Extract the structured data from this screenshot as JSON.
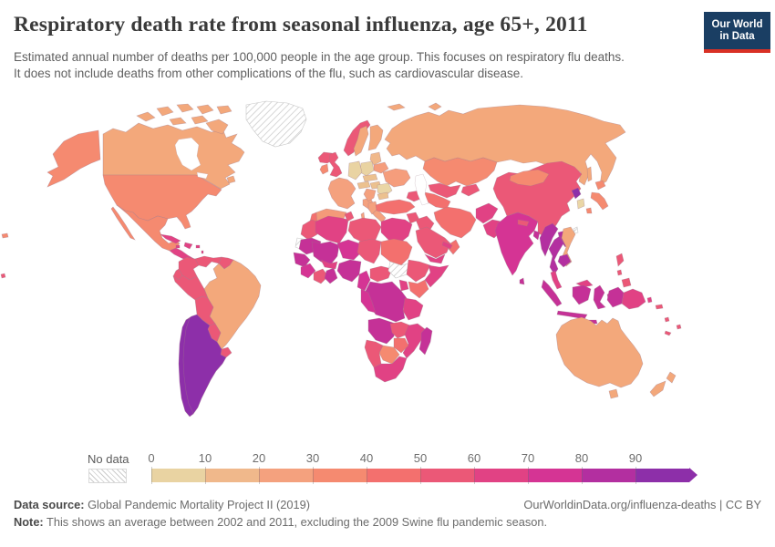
{
  "header": {
    "title": "Respiratory death rate from seasonal influenza, age 65+, 2011",
    "subtitle": "Estimated annual number of deaths per 100,000 people in the age group. This focuses on respiratory flu deaths.\nIt does not include deaths from other complications of the flu, such as cardiovascular disease.",
    "logo": {
      "line1": "Our World",
      "line2": "in Data",
      "bg_color": "#1a3e63",
      "accent_color": "#d93025"
    }
  },
  "legend": {
    "no_data_label": "No data",
    "tick_labels": [
      "0",
      "10",
      "20",
      "30",
      "40",
      "50",
      "60",
      "70",
      "80",
      "90"
    ],
    "bins": [
      {
        "range": "0-10",
        "color": "#e9d3a2"
      },
      {
        "range": "10-20",
        "color": "#f0b88b"
      },
      {
        "range": "20-30",
        "color": "#f4a17e"
      },
      {
        "range": "30-40",
        "color": "#f58a70"
      },
      {
        "range": "40-50",
        "color": "#f3706e"
      },
      {
        "range": "50-60",
        "color": "#eb5877"
      },
      {
        "range": "60-70",
        "color": "#e14284"
      },
      {
        "range": "70-80",
        "color": "#d53494"
      },
      {
        "range": "80-90",
        "color": "#b32fa0"
      },
      {
        "range": "90+",
        "color": "#8d2fa9"
      }
    ]
  },
  "footer": {
    "data_source_label": "Data source:",
    "data_source_text": " Global Pandemic Mortality Project II (2019)",
    "attribution": "OurWorldinData.org/influenza-deaths | CC BY",
    "note_label": "Note:",
    "note_text": " This shows an average between 2002 and 2011, excluding the 2009 Swine flu pandemic season."
  },
  "chart_data": {
    "type": "choropleth_map",
    "title": "Respiratory death rate from seasonal influenza, age 65+, 2011",
    "unit": "estimated annual deaths per 100,000 people aged 65+",
    "year": "2011",
    "value_range": [
      0,
      100
    ],
    "legend_position": "bottom",
    "regions": {
      "greenland": {
        "name": "Greenland",
        "value_bin": "No data",
        "color": "hatch"
      },
      "western_sahara": {
        "name": "Western Sahara",
        "value_bin": "No data",
        "color": "hatch"
      },
      "south_sudan": {
        "name": "South Sudan",
        "value_bin": "No data",
        "color": "hatch"
      },
      "taiwan": {
        "name": "Taiwan",
        "value_bin": "No data",
        "color": "hatch"
      },
      "canada": {
        "name": "Canada",
        "value_bin": "20-30",
        "color": "#f3a87b"
      },
      "united_states": {
        "name": "United States",
        "value_bin": "30-40",
        "color": "#f58a70"
      },
      "mexico": {
        "name": "Mexico",
        "value_bin": "30-40",
        "color": "#f58a70"
      },
      "central_america": {
        "name": "Central America",
        "value_bin": "60-70",
        "color": "#e14284"
      },
      "cuba": {
        "name": "Cuba",
        "value_bin": "60-70",
        "color": "#e14284"
      },
      "hispaniola": {
        "name": "Haiti / Dominican Rep.",
        "value_bin": "60-70",
        "color": "#e14284"
      },
      "caribbean": {
        "name": "Caribbean islands",
        "value_bin": "60-70",
        "color": "#e14284"
      },
      "colombia": {
        "name": "Colombia",
        "value_bin": "50-60",
        "color": "#eb5877"
      },
      "venezuela": {
        "name": "Venezuela",
        "value_bin": "50-60",
        "color": "#eb5877"
      },
      "guyana_suriname": {
        "name": "Guyana / Suriname",
        "value_bin": "50-60",
        "color": "#eb5877"
      },
      "ecuador": {
        "name": "Ecuador",
        "value_bin": "50-60",
        "color": "#eb5877"
      },
      "peru": {
        "name": "Peru",
        "value_bin": "50-60",
        "color": "#eb5877"
      },
      "bolivia": {
        "name": "Bolivia",
        "value_bin": "50-60",
        "color": "#eb5877"
      },
      "paraguay": {
        "name": "Paraguay",
        "value_bin": "50-60",
        "color": "#eb5877"
      },
      "brazil": {
        "name": "Brazil",
        "value_bin": "20-30",
        "color": "#f3a87b"
      },
      "uruguay": {
        "name": "Uruguay",
        "value_bin": "50-60",
        "color": "#eb5877"
      },
      "argentina": {
        "name": "Argentina",
        "value_bin": "90+",
        "color": "#8d2fa9"
      },
      "chile": {
        "name": "Chile",
        "value_bin": "90+",
        "color": "#8d2fa9"
      },
      "iceland": {
        "name": "Iceland",
        "value_bin": "50-60",
        "color": "#eb5877"
      },
      "united_kingdom": {
        "name": "United Kingdom",
        "value_bin": "50-60",
        "color": "#eb5877"
      },
      "ireland": {
        "name": "Ireland",
        "value_bin": "30-40",
        "color": "#f58a70"
      },
      "norway": {
        "name": "Norway",
        "value_bin": "50-60",
        "color": "#eb5877"
      },
      "sweden": {
        "name": "Sweden",
        "value_bin": "20-30",
        "color": "#f3a87b"
      },
      "finland": {
        "name": "Finland",
        "value_bin": "20-30",
        "color": "#f3a87b"
      },
      "denmark": {
        "name": "Denmark",
        "value_bin": "30-40",
        "color": "#f58a70"
      },
      "baltic_states": {
        "name": "Baltic states",
        "value_bin": "10-20",
        "color": "#f0b88b"
      },
      "belarus": {
        "name": "Belarus",
        "value_bin": "30-40",
        "color": "#f59d7c"
      },
      "poland": {
        "name": "Poland",
        "value_bin": "0-10",
        "color": "#e9d3a2"
      },
      "germany": {
        "name": "Germany",
        "value_bin": "0-10",
        "color": "#e9d3a2"
      },
      "france": {
        "name": "France",
        "value_bin": "20-30",
        "color": "#f4a17e"
      },
      "spain": {
        "name": "Spain",
        "value_bin": "20-30",
        "color": "#f49a79"
      },
      "portugal": {
        "name": "Portugal",
        "value_bin": "40-50",
        "color": "#f3706e"
      },
      "italy": {
        "name": "Italy",
        "value_bin": "20-30",
        "color": "#f4a17e"
      },
      "central_europe": {
        "name": "Czechia / Slovakia / Austria",
        "value_bin": "10-20",
        "color": "#ecc18f"
      },
      "hungary": {
        "name": "Hungary",
        "value_bin": "10-20",
        "color": "#ecc18f"
      },
      "romania": {
        "name": "Romania",
        "value_bin": "0-10",
        "color": "#ead6a6"
      },
      "balkans": {
        "name": "Balkans",
        "value_bin": "20-30",
        "color": "#f4a17e"
      },
      "greece": {
        "name": "Greece",
        "value_bin": "20-30",
        "color": "#f4a17e"
      },
      "bulgaria": {
        "name": "Bulgaria",
        "value_bin": "10-20",
        "color": "#ecc18f"
      },
      "ukraine": {
        "name": "Ukraine",
        "value_bin": "30-40",
        "color": "#f59d7c"
      },
      "russia": {
        "name": "Russia",
        "value_bin": "20-30",
        "color": "#f3a87b"
      },
      "svalbard": {
        "name": "Svalbard",
        "value_bin": "20-30",
        "color": "#f3a87b"
      },
      "kazakhstan": {
        "name": "Kazakhstan",
        "value_bin": "30-40",
        "color": "#f58a70"
      },
      "uzbekistan": {
        "name": "Uzbekistan",
        "value_bin": "50-60",
        "color": "#eb5877"
      },
      "turkmenistan": {
        "name": "Turkmenistan",
        "value_bin": "40-50",
        "color": "#f3706e"
      },
      "kyrgyzstan_tajikistan": {
        "name": "Kyrgyzstan / Tajikistan",
        "value_bin": "50-60",
        "color": "#eb5877"
      },
      "caucasus": {
        "name": "Caucasus",
        "value_bin": "50-60",
        "color": "#eb5877"
      },
      "turkey": {
        "name": "Turkey",
        "value_bin": "40-50",
        "color": "#f3706e"
      },
      "syria": {
        "name": "Syria",
        "value_bin": "50-60",
        "color": "#eb5877"
      },
      "levant": {
        "name": "Jordan / Israel",
        "value_bin": "60-70",
        "color": "#e14284"
      },
      "iraq": {
        "name": "Iraq",
        "value_bin": "50-60",
        "color": "#eb5877"
      },
      "iran": {
        "name": "Iran",
        "value_bin": "40-50",
        "color": "#f3706e"
      },
      "saudi_arabia": {
        "name": "Saudi Arabia",
        "value_bin": "50-60",
        "color": "#eb5877"
      },
      "yemen": {
        "name": "Yemen",
        "value_bin": "60-70",
        "color": "#e14284"
      },
      "oman": {
        "name": "Oman",
        "value_bin": "40-50",
        "color": "#f3706e"
      },
      "uae": {
        "name": "United Arab Emirates",
        "value_bin": "60-70",
        "color": "#e14284"
      },
      "afghanistan": {
        "name": "Afghanistan",
        "value_bin": "60-70",
        "color": "#e14284"
      },
      "pakistan": {
        "name": "Pakistan",
        "value_bin": "60-70",
        "color": "#e14284"
      },
      "morocco": {
        "name": "Morocco",
        "value_bin": "50-60",
        "color": "#eb5877"
      },
      "algeria": {
        "name": "Algeria",
        "value_bin": "60-70",
        "color": "#e14284"
      },
      "tunisia": {
        "name": "Tunisia",
        "value_bin": "50-60",
        "color": "#eb5877"
      },
      "libya": {
        "name": "Libya",
        "value_bin": "50-60",
        "color": "#eb5877"
      },
      "egypt": {
        "name": "Egypt",
        "value_bin": "60-70",
        "color": "#e14284"
      },
      "mauritania": {
        "name": "Mauritania",
        "value_bin": "80-90",
        "color": "#c53197"
      },
      "mali": {
        "name": "Mali",
        "value_bin": "80-90",
        "color": "#c53197"
      },
      "niger": {
        "name": "Niger",
        "value_bin": "70-80",
        "color": "#d53494"
      },
      "chad": {
        "name": "Chad",
        "value_bin": "50-60",
        "color": "#eb5877"
      },
      "sudan": {
        "name": "Sudan",
        "value_bin": "40-50",
        "color": "#f3706e"
      },
      "senegal": {
        "name": "Senegal / Gambia",
        "value_bin": "80-90",
        "color": "#c53197"
      },
      "guinea": {
        "name": "Guinea / Sierra Leone",
        "value_bin": "70-80",
        "color": "#d53494"
      },
      "ivory_coast": {
        "name": "Côte d'Ivoire / Liberia",
        "value_bin": "50-60",
        "color": "#eb5877"
      },
      "ghana": {
        "name": "Ghana / Togo / Benin",
        "value_bin": "80-90",
        "color": "#c53197"
      },
      "burkina_faso": {
        "name": "Burkina Faso",
        "value_bin": "60-70",
        "color": "#e14284"
      },
      "nigeria": {
        "name": "Nigeria",
        "value_bin": "80-90",
        "color": "#c53197"
      },
      "cameroon": {
        "name": "Cameroon",
        "value_bin": "70-80",
        "color": "#d53494"
      },
      "central_african_republic": {
        "name": "Central African Republic",
        "value_bin": "50-60",
        "color": "#eb5877"
      },
      "ethiopia": {
        "name": "Ethiopia",
        "value_bin": "50-60",
        "color": "#eb5877"
      },
      "somalia": {
        "name": "Somalia",
        "value_bin": "60-70",
        "color": "#e14284"
      },
      "kenya": {
        "name": "Kenya",
        "value_bin": "40-50",
        "color": "#f3706e"
      },
      "uganda": {
        "name": "Uganda",
        "value_bin": "60-70",
        "color": "#e14284"
      },
      "dr_congo": {
        "name": "Democratic Republic of Congo",
        "value_bin": "80-90",
        "color": "#c53197"
      },
      "congo_gabon": {
        "name": "Congo / Gabon",
        "value_bin": "70-80",
        "color": "#d53494"
      },
      "tanzania": {
        "name": "Tanzania",
        "value_bin": "60-70",
        "color": "#e14284"
      },
      "angola": {
        "name": "Angola",
        "value_bin": "80-90",
        "color": "#c53197"
      },
      "zambia": {
        "name": "Zambia",
        "value_bin": "50-60",
        "color": "#eb5877"
      },
      "mozambique": {
        "name": "Mozambique",
        "value_bin": "60-70",
        "color": "#e14284"
      },
      "zimbabwe": {
        "name": "Zimbabwe",
        "value_bin": "40-50",
        "color": "#f3706e"
      },
      "botswana": {
        "name": "Botswana",
        "value_bin": "30-40",
        "color": "#f58a70"
      },
      "namibia": {
        "name": "Namibia",
        "value_bin": "50-60",
        "color": "#eb5877"
      },
      "south_africa": {
        "name": "South Africa",
        "value_bin": "60-70",
        "color": "#e14284"
      },
      "madagascar": {
        "name": "Madagascar",
        "value_bin": "80-90",
        "color": "#c53197"
      },
      "india": {
        "name": "India",
        "value_bin": "70-80",
        "color": "#d53494"
      },
      "nepal": {
        "name": "Nepal",
        "value_bin": "50-60",
        "color": "#eb5877"
      },
      "bangladesh": {
        "name": "Bangladesh",
        "value_bin": "80-90",
        "color": "#c53197"
      },
      "sri_lanka": {
        "name": "Sri Lanka",
        "value_bin": "80-90",
        "color": "#c53197"
      },
      "china": {
        "name": "China",
        "value_bin": "50-60",
        "color": "#eb5877"
      },
      "mongolia": {
        "name": "Mongolia",
        "value_bin": "30-40",
        "color": "#f58a70"
      },
      "north_korea": {
        "name": "North Korea",
        "value_bin": "90+",
        "color": "#8d2fa9"
      },
      "south_korea": {
        "name": "South Korea",
        "value_bin": "0-10",
        "color": "#ead6a6"
      },
      "japan": {
        "name": "Japan",
        "value_bin": "30-40",
        "color": "#f58a70"
      },
      "myanmar": {
        "name": "Myanmar",
        "value_bin": "80-90",
        "color": "#b32fa0"
      },
      "thailand": {
        "name": "Thailand",
        "value_bin": "80-90",
        "color": "#b32fa0"
      },
      "laos": {
        "name": "Laos",
        "value_bin": "80-90",
        "color": "#b32fa0"
      },
      "vietnam": {
        "name": "Vietnam",
        "value_bin": "20-30",
        "color": "#f3a87b"
      },
      "cambodia": {
        "name": "Cambodia",
        "value_bin": "80-90",
        "color": "#b32fa0"
      },
      "malaysia": {
        "name": "Malaysia",
        "value_bin": "60-70",
        "color": "#e14284"
      },
      "indonesia": {
        "name": "Indonesia",
        "value_bin": "80-90",
        "color": "#c53197"
      },
      "papua_new_guinea": {
        "name": "Papua New Guinea",
        "value_bin": "60-70",
        "color": "#e14284"
      },
      "philippines": {
        "name": "Philippines",
        "value_bin": "50-60",
        "color": "#eb5877"
      },
      "australia": {
        "name": "Australia",
        "value_bin": "20-30",
        "color": "#f3a87b"
      },
      "new_zealand": {
        "name": "New Zealand",
        "value_bin": "20-30",
        "color": "#f3a87b"
      },
      "pacific_islands": {
        "name": "Pacific islands",
        "value_bin": "50-60",
        "color": "#eb5877"
      }
    }
  }
}
